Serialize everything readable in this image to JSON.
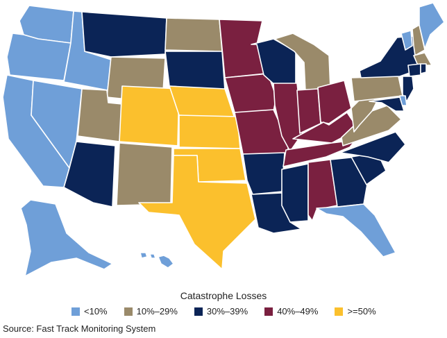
{
  "legend": {
    "title": "Catastrophe Losses",
    "items": [
      {
        "label": "<10%",
        "color": "#6f9fd8"
      },
      {
        "label": "10%–29%",
        "color": "#9a8a6a"
      },
      {
        "label": "30%–39%",
        "color": "#0b2456"
      },
      {
        "label": "40%–49%",
        "color": "#7a2040"
      },
      {
        "label": ">=50%",
        "color": "#fbc02d"
      }
    ]
  },
  "source": "Source: Fast Track Monitoring System",
  "states": [
    {
      "code": "WA",
      "cat": 0
    },
    {
      "code": "OR",
      "cat": 0
    },
    {
      "code": "CA",
      "cat": 0
    },
    {
      "code": "ID",
      "cat": 0
    },
    {
      "code": "NV",
      "cat": 0
    },
    {
      "code": "AZ",
      "cat": 2
    },
    {
      "code": "MT",
      "cat": 2
    },
    {
      "code": "WY",
      "cat": 1
    },
    {
      "code": "UT",
      "cat": 1
    },
    {
      "code": "CO",
      "cat": 4
    },
    {
      "code": "NM",
      "cat": 1
    },
    {
      "code": "ND",
      "cat": 1
    },
    {
      "code": "SD",
      "cat": 2
    },
    {
      "code": "NE",
      "cat": 4
    },
    {
      "code": "KS",
      "cat": 4
    },
    {
      "code": "OK",
      "cat": 4
    },
    {
      "code": "TX",
      "cat": 4
    },
    {
      "code": "MN",
      "cat": 3
    },
    {
      "code": "IA",
      "cat": 3
    },
    {
      "code": "MO",
      "cat": 3
    },
    {
      "code": "AR",
      "cat": 2
    },
    {
      "code": "LA",
      "cat": 2
    },
    {
      "code": "WI",
      "cat": 2
    },
    {
      "code": "IL",
      "cat": 3
    },
    {
      "code": "MI",
      "cat": 1
    },
    {
      "code": "IN",
      "cat": 3
    },
    {
      "code": "OH",
      "cat": 3
    },
    {
      "code": "KY",
      "cat": 3
    },
    {
      "code": "TN",
      "cat": 3
    },
    {
      "code": "MS",
      "cat": 2
    },
    {
      "code": "AL",
      "cat": 3
    },
    {
      "code": "GA",
      "cat": 2
    },
    {
      "code": "FL",
      "cat": 0
    },
    {
      "code": "SC",
      "cat": 2
    },
    {
      "code": "NC",
      "cat": 2
    },
    {
      "code": "VA",
      "cat": 1
    },
    {
      "code": "WV",
      "cat": 1
    },
    {
      "code": "PA",
      "cat": 1
    },
    {
      "code": "NY",
      "cat": 2
    },
    {
      "code": "VT",
      "cat": 0
    },
    {
      "code": "NH",
      "cat": 1
    },
    {
      "code": "ME",
      "cat": 0
    },
    {
      "code": "MA",
      "cat": 1
    },
    {
      "code": "CT",
      "cat": 2
    },
    {
      "code": "RI",
      "cat": 2
    },
    {
      "code": "NJ",
      "cat": 2
    },
    {
      "code": "DE",
      "cat": 0
    },
    {
      "code": "MD",
      "cat": 2
    },
    {
      "code": "AK",
      "cat": 0
    },
    {
      "code": "HI",
      "cat": 0
    }
  ]
}
